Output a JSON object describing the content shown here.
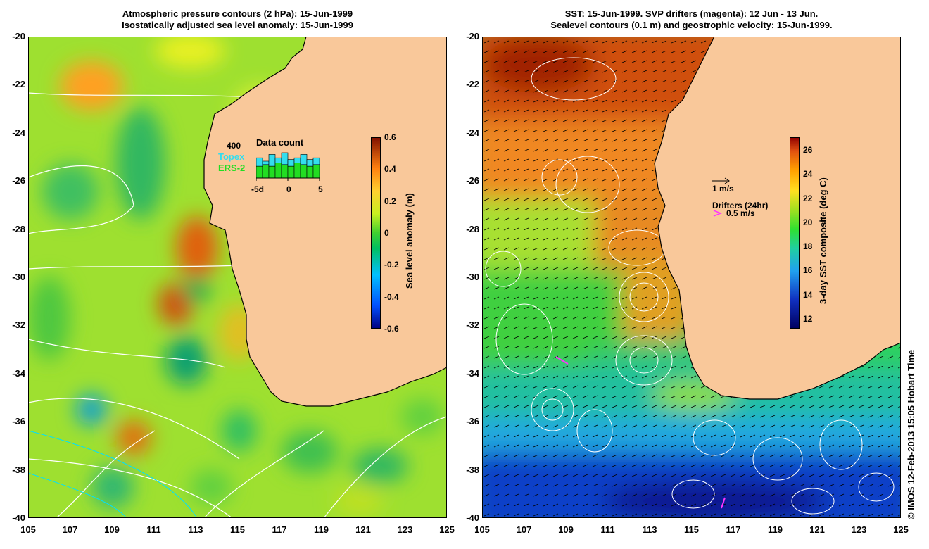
{
  "left_panel": {
    "title_line1": "Atmospheric pressure contours (2 hPa): 15-Jun-1999",
    "title_line2": "Isostatically adjusted sea level anomaly: 15-Jun-1999",
    "y_ticks": [
      "-20",
      "-22",
      "-24",
      "-26",
      "-28",
      "-30",
      "-32",
      "-34",
      "-36",
      "-38",
      "-40"
    ],
    "x_ticks": [
      "105",
      "107",
      "109",
      "111",
      "113",
      "115",
      "117",
      "119",
      "121",
      "123",
      "125"
    ],
    "colorbar": {
      "title": "Sea level anomaly (m)",
      "ticks": [
        "0.6",
        "0.4",
        "0.2",
        "0",
        "-0.2",
        "-0.4",
        "-0.6"
      ]
    },
    "data_count": {
      "title": "Data count",
      "max_label": "400",
      "topex_label": "Topex",
      "ers2_label": "ERS-2",
      "x_ticks": [
        "-5d",
        "0",
        "5"
      ],
      "topex_color": "#33ddee",
      "ers2_color": "#22dd22"
    }
  },
  "right_panel": {
    "title_line1": "SST: 15-Jun-1999. SVP drifters (magenta): 12 Jun - 13 Jun.",
    "title_line2": "Sealevel contours (0.1 m) and geostrophic velocity: 15-Jun-1999.",
    "y_ticks": [
      "-20",
      "-22",
      "-24",
      "-26",
      "-28",
      "-30",
      "-32",
      "-34",
      "-36",
      "-38",
      "-40"
    ],
    "x_ticks": [
      "105",
      "107",
      "109",
      "111",
      "113",
      "115",
      "117",
      "119",
      "121",
      "123",
      "125"
    ],
    "colorbar": {
      "title": "3-day SST composite (deg C)",
      "ticks": [
        "26",
        "24",
        "22",
        "20",
        "18",
        "16",
        "14",
        "12"
      ]
    },
    "velocity_legend": "1 m/s",
    "drifters_legend": "Drifters (24hr)",
    "drifter_speed": "0.5 m/s",
    "drifter_color": "#ff33ff"
  },
  "credit": "© IMOS 12-Feb-2013 15:05 Hobart Time",
  "colors": {
    "land": "#f9c89a",
    "sla_ramp": [
      "#000080",
      "#0060ff",
      "#00c0ff",
      "#00c060",
      "#70d820",
      "#c8f020",
      "#ffe040",
      "#ff9810",
      "#c83000",
      "#801000"
    ],
    "sst_ramp": [
      "#000060",
      "#1030c0",
      "#20a0f0",
      "#20d0a0",
      "#30e030",
      "#a0e020",
      "#ffe020",
      "#ffa000",
      "#e05010",
      "#900000"
    ]
  }
}
